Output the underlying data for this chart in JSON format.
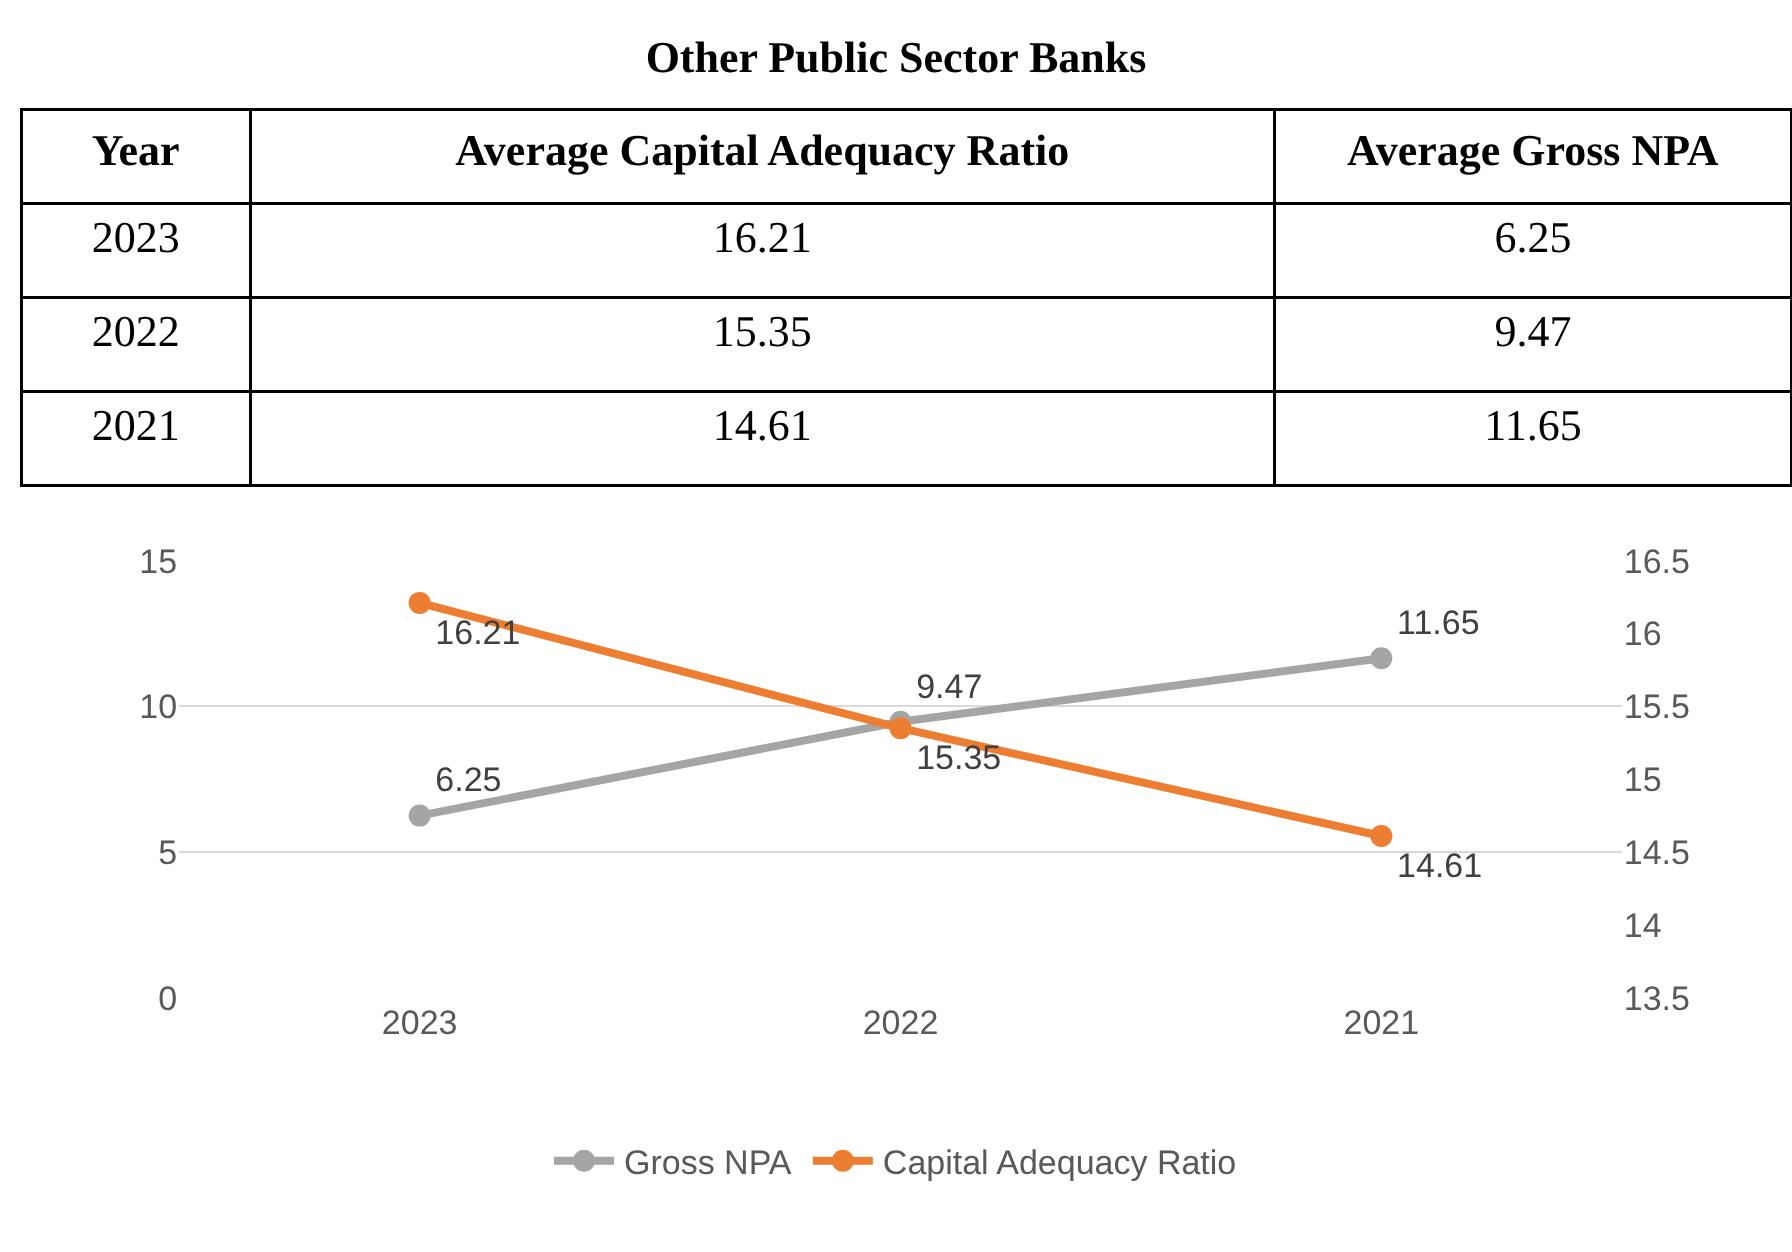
{
  "chart_data": {
    "type": "line",
    "title": "Other Public Sector Banks",
    "annotations": [
      "Year",
      "Average Capital Adequacy Ratio",
      "Average Gross NPA",
      "2023",
      "16.21",
      "6.25",
      "2022",
      "15.35",
      "9.47",
      "2021",
      "14.61",
      "11.65"
    ],
    "categories": [
      "2023",
      "2022",
      "2021"
    ],
    "series": [
      {
        "name": "Gross NPA",
        "color": "#a5a5a5",
        "values": [
          6.25,
          9.47,
          11.65
        ]
      },
      {
        "name": "Capital Adequacy Ratio",
        "color": "#ed7d31",
        "values": [
          16.21,
          15.35,
          14.61
        ],
        "axis": "y2"
      }
    ],
    "ylim": [
      0,
      15
    ],
    "yticks": [
      0,
      5,
      10,
      15
    ],
    "y2lim": [
      13.5,
      16.5
    ],
    "y2ticks": [
      13.5,
      14,
      14.5,
      15,
      15.5,
      16,
      16.5
    ],
    "grid": "y",
    "legend": "bottom",
    "marker": "circle",
    "line_style": "solid",
    "data_labels": true
  }
}
